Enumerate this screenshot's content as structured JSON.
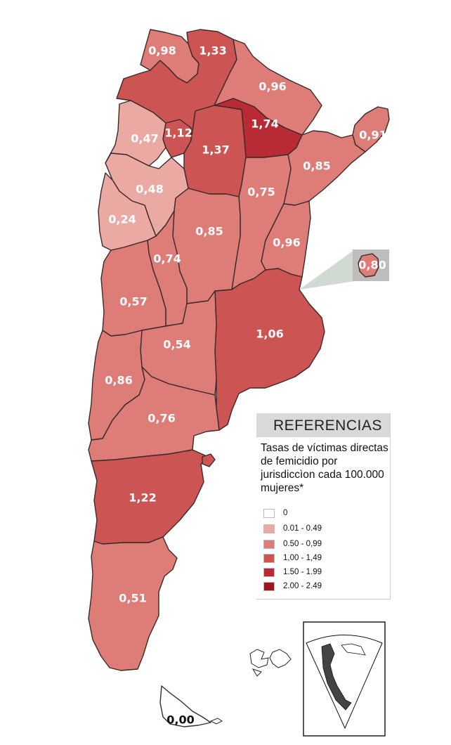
{
  "legend": {
    "title": "REFERENCIAS",
    "description": "Tasas de víctimas directas de femicidio por jurisdiccìon cada 100.000 mujeres*",
    "classes": [
      {
        "label": "0",
        "color": "#ffffff"
      },
      {
        "label": "0.01 - 0.49",
        "color": "#eba9a3"
      },
      {
        "label": "0.50 - 0,99",
        "color": "#de7c77"
      },
      {
        "label": "1,00 - 1,49",
        "color": "#cc5453"
      },
      {
        "label": "1.50 - 1.99",
        "color": "#b82a34"
      },
      {
        "label": "2.00 - 2.49",
        "color": "#9c1520"
      }
    ]
  },
  "provinces": [
    {
      "id": "jujuy",
      "rate": "0,98"
    },
    {
      "id": "salta",
      "rate": "1,33"
    },
    {
      "id": "formosa",
      "rate": "0,96"
    },
    {
      "id": "chaco",
      "rate": "1,74"
    },
    {
      "id": "misiones",
      "rate": "0,91"
    },
    {
      "id": "catamarca",
      "rate": "0,47"
    },
    {
      "id": "tucuman",
      "rate": "1,12"
    },
    {
      "id": "santiago-del-estero",
      "rate": "1,37"
    },
    {
      "id": "corrientes",
      "rate": "0,85"
    },
    {
      "id": "la-rioja",
      "rate": "0,48"
    },
    {
      "id": "santa-fe",
      "rate": "0,75"
    },
    {
      "id": "san-juan",
      "rate": "0,24"
    },
    {
      "id": "cordoba",
      "rate": "0,85"
    },
    {
      "id": "entre-rios",
      "rate": "0,96"
    },
    {
      "id": "caba",
      "rate": "0,80"
    },
    {
      "id": "san-luis",
      "rate": "0,74"
    },
    {
      "id": "mendoza",
      "rate": "0,57"
    },
    {
      "id": "buenos-aires",
      "rate": "1,06"
    },
    {
      "id": "la-pampa",
      "rate": "0,54"
    },
    {
      "id": "neuquen",
      "rate": "0,86"
    },
    {
      "id": "rio-negro",
      "rate": "0,76"
    },
    {
      "id": "chubut",
      "rate": "1,22"
    },
    {
      "id": "santa-cruz",
      "rate": "0,51"
    },
    {
      "id": "tierra-del-fuego",
      "rate": "0,00"
    }
  ],
  "colors": {
    "class0": "#ffffff",
    "class1": "#eba9a3",
    "class2": "#de7c77",
    "class3": "#cc5453",
    "class4": "#b82a34",
    "class5": "#9c1520",
    "inset_box": "#bdbdbd",
    "callout": "#c8d4c8"
  }
}
